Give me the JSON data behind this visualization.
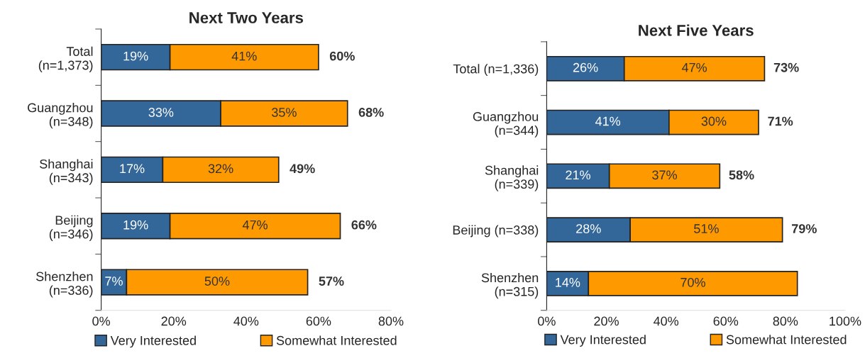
{
  "chart_data": [
    {
      "type": "bar",
      "orientation": "horizontal",
      "stacked": true,
      "title": "Next Two Years",
      "categories": [
        "Total\n(n=1,373)",
        "Guangzhou\n(n=348)",
        "Shanghai\n(n=343)",
        "Beijing\n(n=346)",
        "Shenzhen\n(n=336)"
      ],
      "series": [
        {
          "name": "Very Interested",
          "color": "#336699",
          "values": [
            19,
            33,
            17,
            19,
            7
          ],
          "value_labels": [
            "19%",
            "33%",
            "17%",
            "19%",
            "7%"
          ]
        },
        {
          "name": "Somewhat Interested",
          "color": "#ff9900",
          "values": [
            41,
            35,
            32,
            47,
            50
          ],
          "value_labels": [
            "41%",
            "35%",
            "32%",
            "47%",
            "50%"
          ]
        }
      ],
      "totals": [
        "60%",
        "68%",
        "49%",
        "66%",
        "57%"
      ],
      "xlim": [
        0,
        80
      ],
      "xticks": [
        {
          "value": 0,
          "label": "0%"
        },
        {
          "value": 20,
          "label": "20%"
        },
        {
          "value": 40,
          "label": "40%"
        },
        {
          "value": 60,
          "label": "60%"
        },
        {
          "value": 80,
          "label": "80%"
        }
      ],
      "legend": "bottom",
      "grid": false
    },
    {
      "type": "bar",
      "orientation": "horizontal",
      "stacked": true,
      "title": "Next Five Years",
      "categories": [
        "Total (n=1,336)",
        "Guangzhou\n(n=344)",
        "Shanghai\n(n=339)",
        "Beijing (n=338)",
        "Shenzhen\n(n=315)"
      ],
      "series": [
        {
          "name": "Very Interested",
          "color": "#336699",
          "values": [
            26,
            41,
            21,
            28,
            14
          ],
          "value_labels": [
            "26%",
            "41%",
            "21%",
            "28%",
            "14%"
          ]
        },
        {
          "name": "Somewhat Interested",
          "color": "#ff9900",
          "values": [
            47,
            30,
            37,
            51,
            70
          ],
          "value_labels": [
            "47%",
            "30%",
            "37%",
            "51%",
            "70%"
          ]
        }
      ],
      "totals": [
        "73%",
        "71%",
        "58%",
        "79%",
        null
      ],
      "xlim": [
        0,
        100
      ],
      "xticks": [
        {
          "value": 0,
          "label": "0%"
        },
        {
          "value": 20,
          "label": "20%"
        },
        {
          "value": 40,
          "label": "40%"
        },
        {
          "value": 60,
          "label": "60%"
        },
        {
          "value": 80,
          "label": "80%"
        },
        {
          "value": 100,
          "label": "100%"
        }
      ],
      "legend": "bottom",
      "grid": false
    }
  ]
}
